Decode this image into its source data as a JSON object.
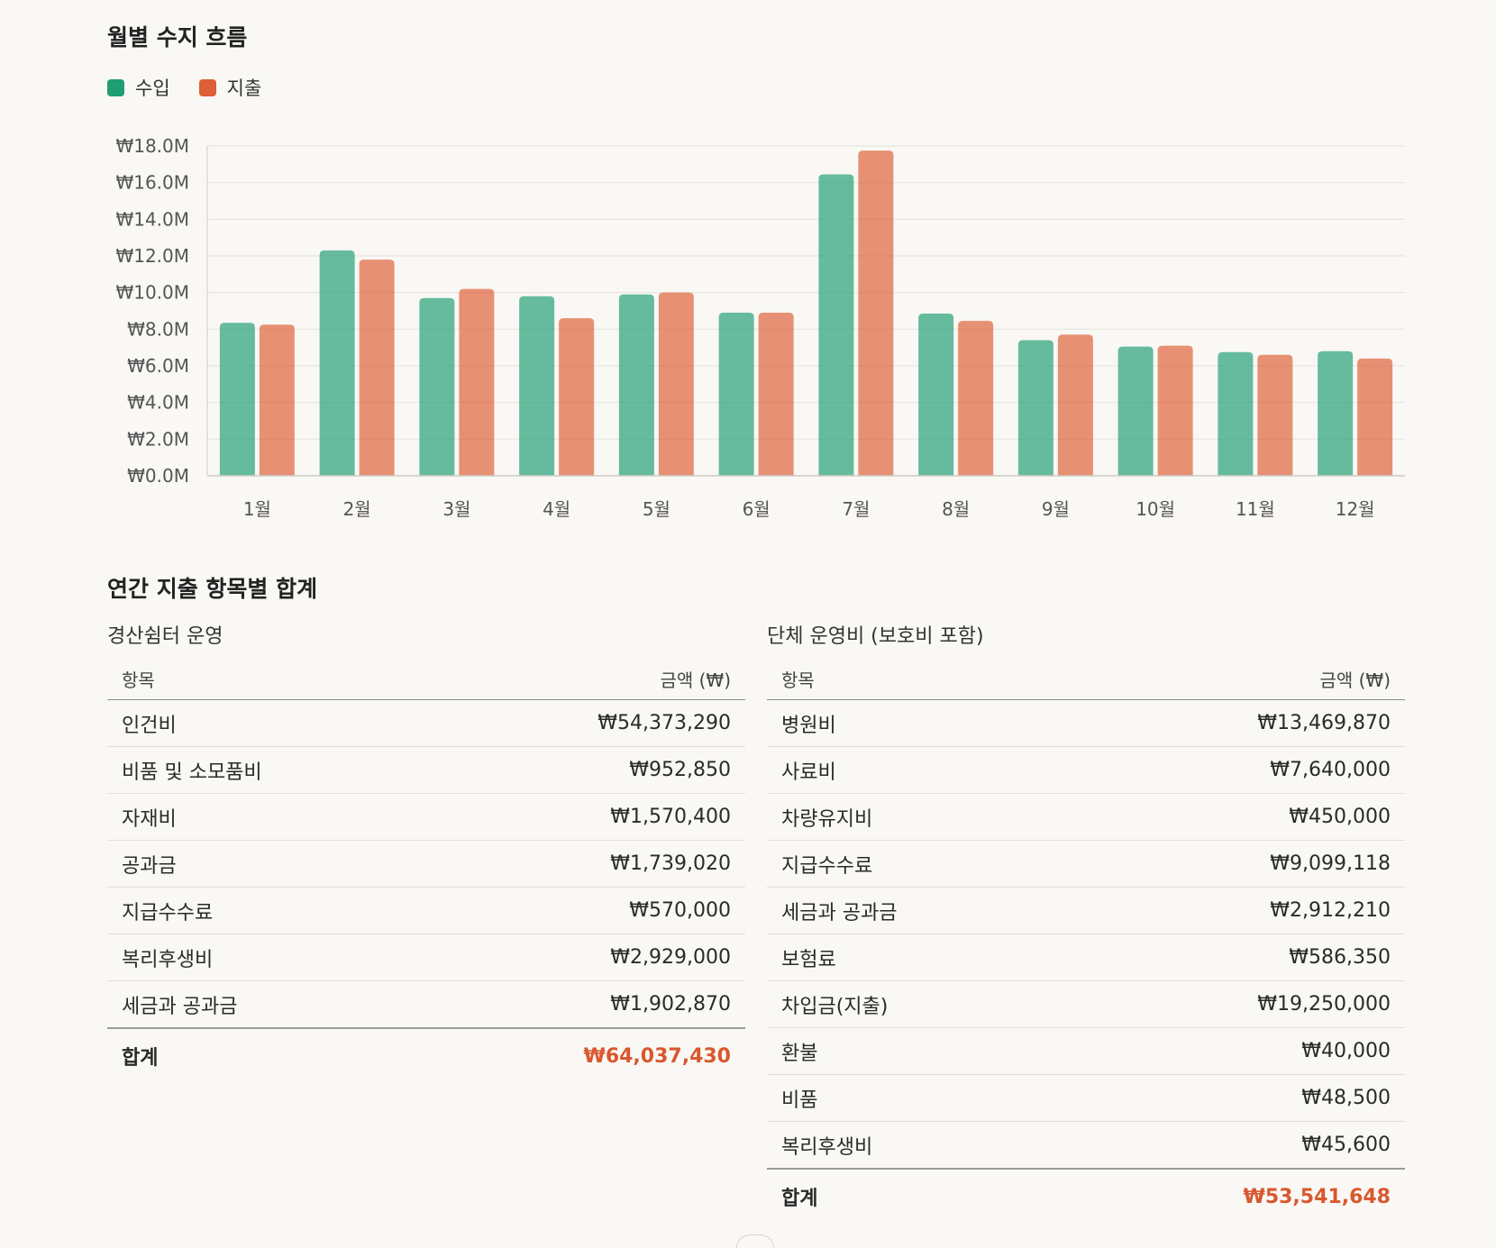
{
  "chart_section": {
    "title": "월별 수지 흐름",
    "legend": [
      {
        "label": "수입",
        "color": "#1f9d74"
      },
      {
        "label": "지출",
        "color": "#dd5f36"
      }
    ]
  },
  "chart_data": {
    "type": "bar",
    "categories": [
      "1월",
      "2월",
      "3월",
      "4월",
      "5월",
      "6월",
      "7월",
      "8월",
      "9월",
      "10월",
      "11월",
      "12월"
    ],
    "series": [
      {
        "name": "수입",
        "color": "#1f9d74",
        "values": [
          8.35,
          12.3,
          9.7,
          9.8,
          9.9,
          8.9,
          16.45,
          8.85,
          7.4,
          7.05,
          6.75,
          6.8
        ]
      },
      {
        "name": "지출",
        "color": "#dd5f36",
        "values": [
          8.25,
          11.8,
          10.2,
          8.6,
          10.0,
          8.9,
          17.75,
          8.45,
          7.7,
          7.1,
          6.6,
          6.4
        ]
      }
    ],
    "unit": "M",
    "y_ticks": [
      "₩0.0M",
      "₩2.0M",
      "₩4.0M",
      "₩6.0M",
      "₩8.0M",
      "₩10.0M",
      "₩12.0M",
      "₩14.0M",
      "₩16.0M",
      "₩18.0M"
    ],
    "ylim": [
      0,
      18
    ],
    "grid": true,
    "legend_position": "top-left"
  },
  "tables_section": {
    "title": "연간 지출 항목별 합계",
    "left": {
      "caption": "경산쉼터 운영",
      "col_item": "항목",
      "col_amount": "금액 (₩)",
      "rows": [
        {
          "item": "인건비",
          "amount": "₩54,373,290"
        },
        {
          "item": "비품 및 소모품비",
          "amount": "₩952,850"
        },
        {
          "item": "자재비",
          "amount": "₩1,570,400"
        },
        {
          "item": "공과금",
          "amount": "₩1,739,020"
        },
        {
          "item": "지급수수료",
          "amount": "₩570,000"
        },
        {
          "item": "복리후생비",
          "amount": "₩2,929,000"
        },
        {
          "item": "세금과 공과금",
          "amount": "₩1,902,870"
        }
      ],
      "total_label": "합계",
      "total_amount": "₩64,037,430"
    },
    "right": {
      "caption": "단체 운영비 (보호비 포함)",
      "col_item": "항목",
      "col_amount": "금액 (₩)",
      "rows": [
        {
          "item": "병원비",
          "amount": "₩13,469,870"
        },
        {
          "item": "사료비",
          "amount": "₩7,640,000"
        },
        {
          "item": "차량유지비",
          "amount": "₩450,000"
        },
        {
          "item": "지급수수료",
          "amount": "₩9,099,118"
        },
        {
          "item": "세금과 공과금",
          "amount": "₩2,912,210"
        },
        {
          "item": "보험료",
          "amount": "₩586,350"
        },
        {
          "item": "차입금(지출)",
          "amount": "₩19,250,000"
        },
        {
          "item": "환불",
          "amount": "₩40,000"
        },
        {
          "item": "비품",
          "amount": "₩48,500"
        },
        {
          "item": "복리후생비",
          "amount": "₩45,600"
        }
      ],
      "total_label": "합계",
      "total_amount": "₩53,541,648"
    }
  }
}
